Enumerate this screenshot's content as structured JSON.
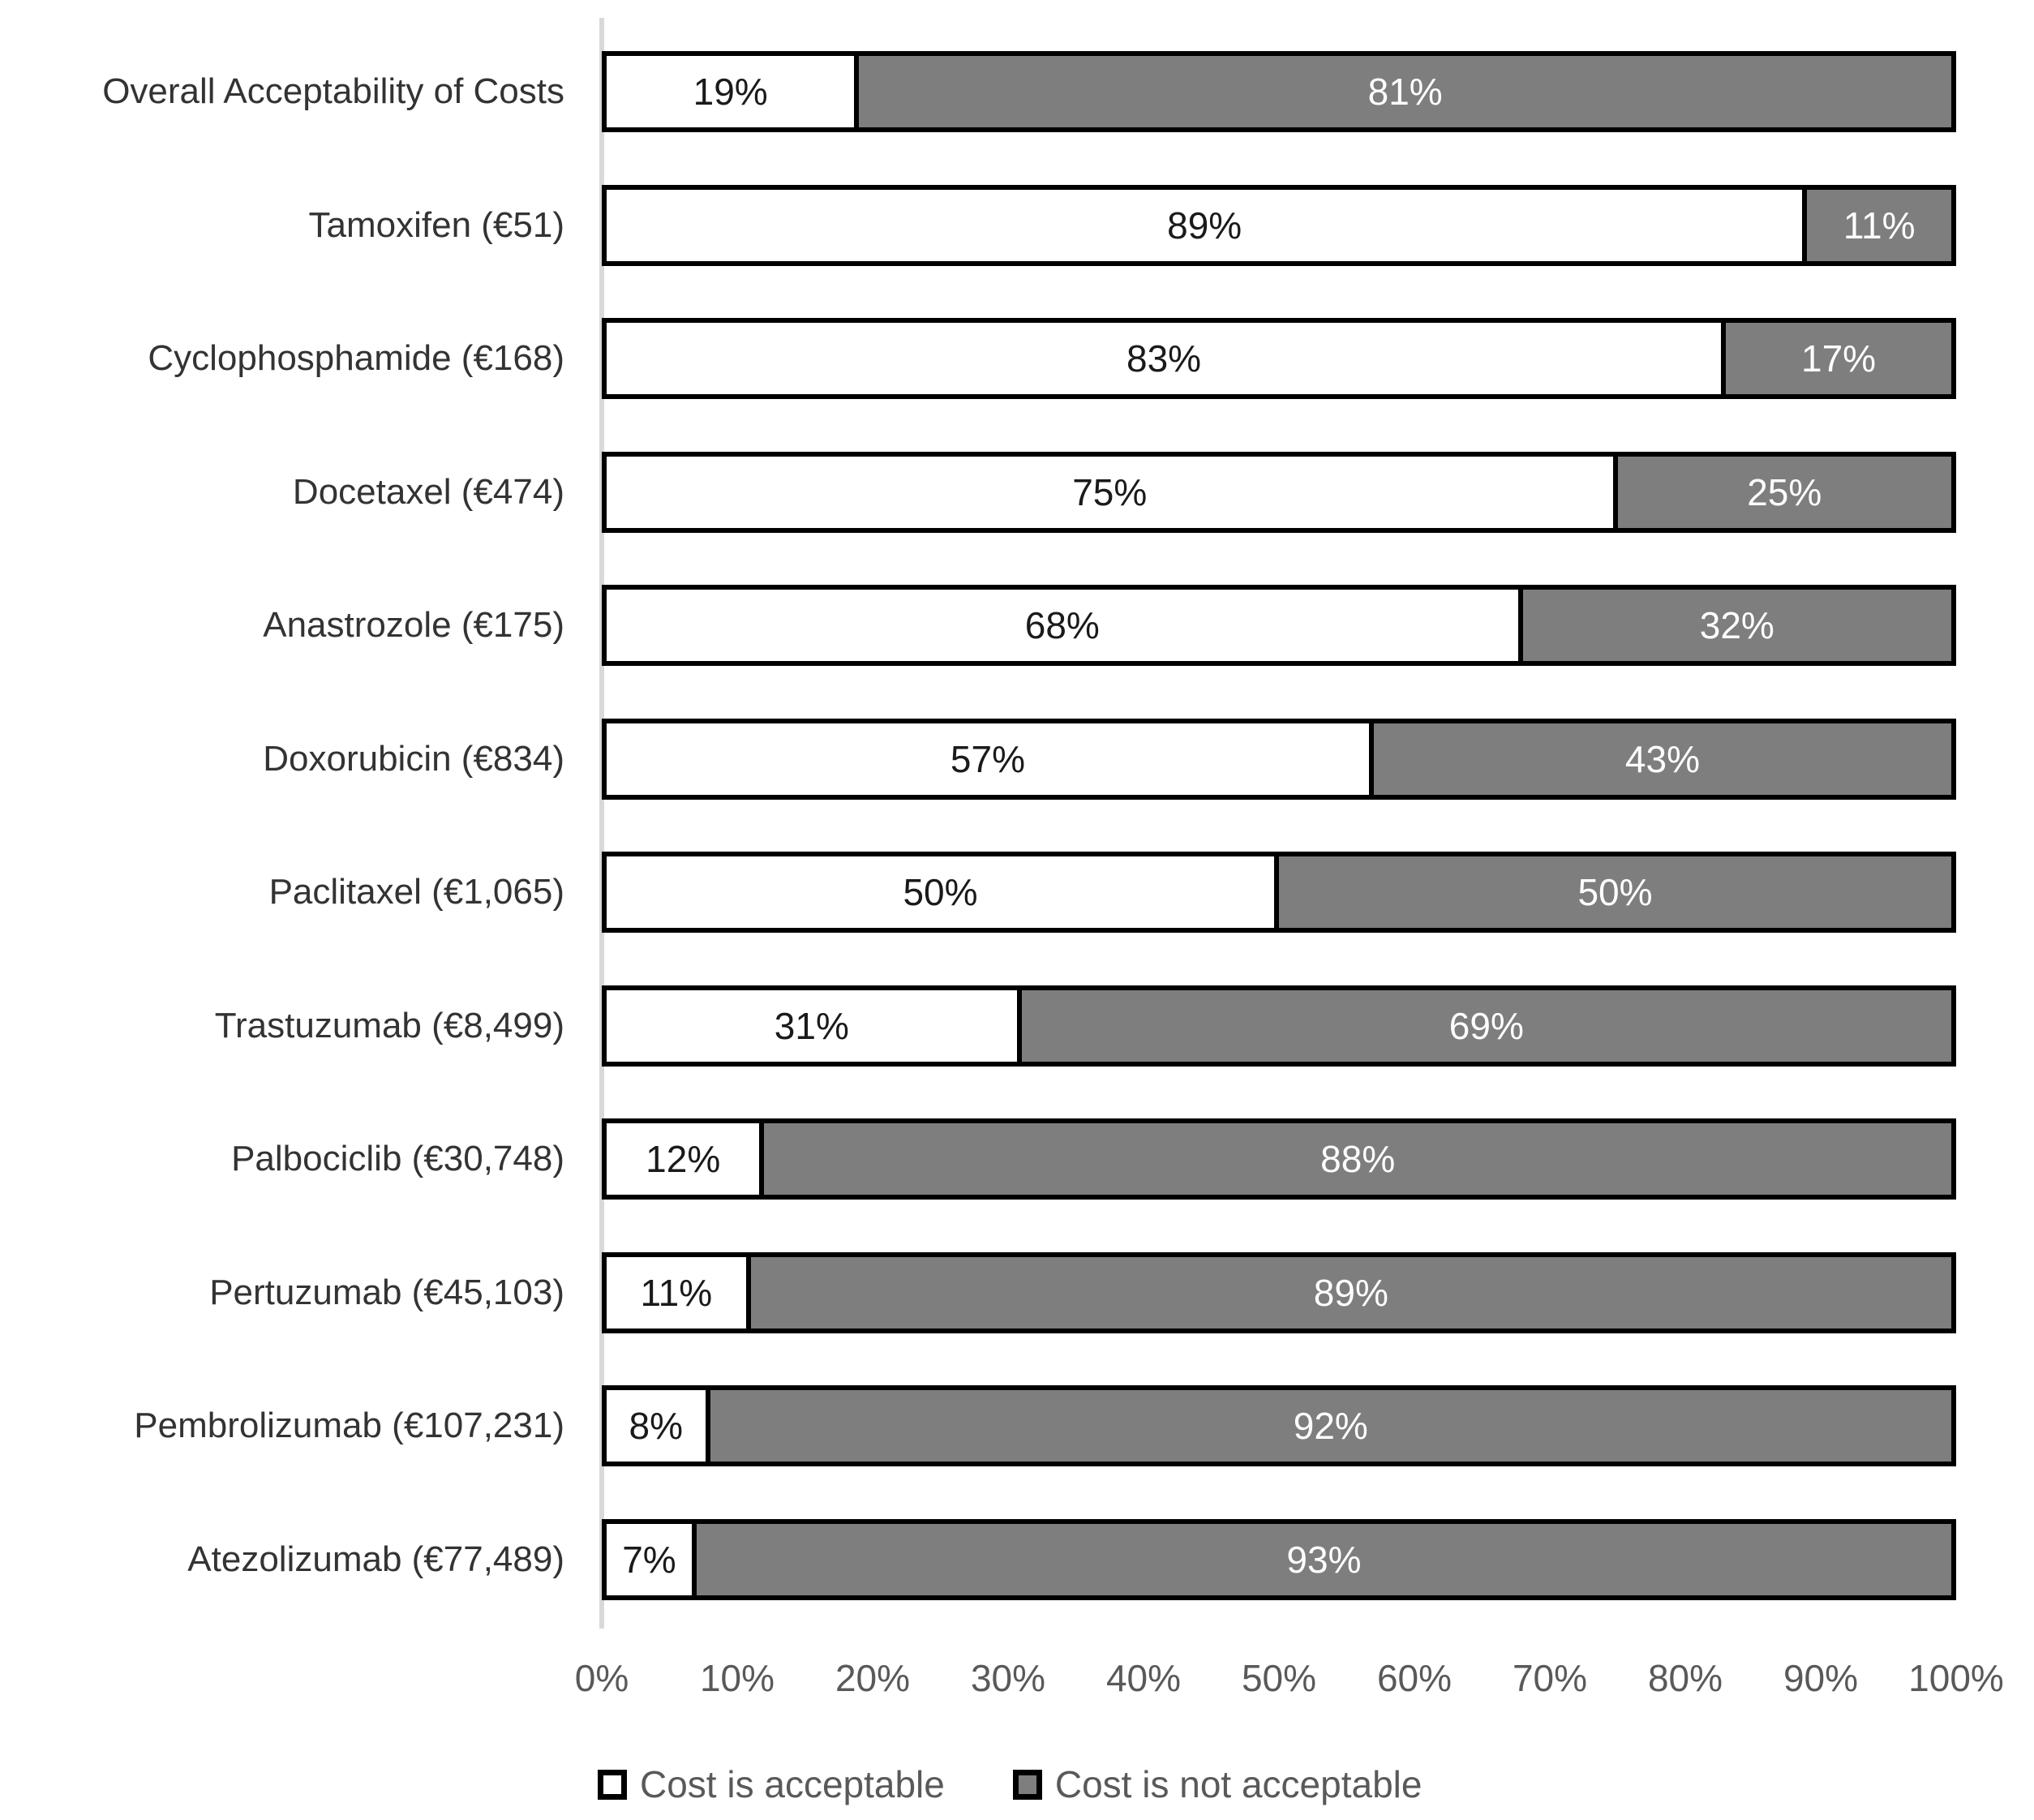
{
  "chart_data": {
    "type": "bar",
    "orientation": "horizontal-stacked",
    "title": "",
    "xlabel": "",
    "ylabel": "",
    "xlim": [
      0,
      100
    ],
    "grid": false,
    "legend_position": "bottom",
    "value_suffix": "%",
    "categories": [
      "Overall Acceptability of Costs",
      "Tamoxifen (€51)",
      "Cyclophosphamide (€168)",
      "Docetaxel (€474)",
      "Anastrozole (€175)",
      "Doxorubicin (€834)",
      "Paclitaxel (€1,065)",
      "Trastuzumab (€8,499)",
      "Palbociclib (€30,748)",
      "Pertuzumab (€45,103)",
      "Pembrolizumab (€107,231)",
      "Atezolizumab (€77,489)"
    ],
    "series": [
      {
        "name": "Cost is acceptable",
        "color": "#ffffff",
        "label_text_color": "#1a1a1a",
        "values": [
          19,
          89,
          83,
          75,
          68,
          57,
          50,
          31,
          12,
          11,
          8,
          7
        ]
      },
      {
        "name": "Cost is not acceptable",
        "color": "#7e7e7e",
        "label_text_color": "#ffffff",
        "values": [
          81,
          11,
          17,
          25,
          32,
          43,
          50,
          69,
          88,
          89,
          92,
          93
        ]
      }
    ],
    "x_ticks": [
      "0%",
      "10%",
      "20%",
      "30%",
      "40%",
      "50%",
      "60%",
      "70%",
      "80%",
      "90%",
      "100%"
    ],
    "colors": {
      "bar_border": "#000000",
      "axis_line": "#d9d9d9",
      "tick_text": "#595959",
      "category_text": "#333333",
      "legend_text": "#595959"
    }
  }
}
